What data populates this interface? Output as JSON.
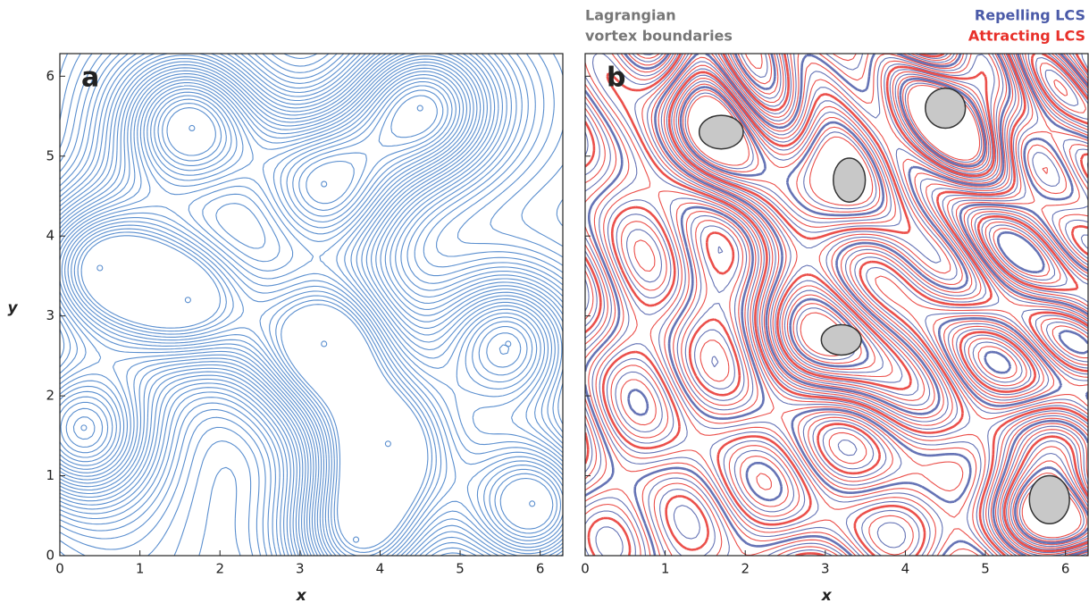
{
  "chart_data": [
    {
      "type": "contour",
      "panel_label": "a",
      "xlabel": "x",
      "ylabel": "y",
      "xlim": [
        0,
        6.283
      ],
      "ylim": [
        0,
        6.283
      ],
      "xticks": [
        0,
        1,
        2,
        3,
        4,
        5,
        6
      ],
      "yticks": [
        0,
        1,
        2,
        3,
        4,
        5,
        6
      ],
      "color": "#5b8fcf",
      "centers": {
        "x": [
          1.65,
          3.3,
          4.5,
          1.6,
          3.3,
          5.6,
          0.3,
          4.1,
          5.9,
          0.5,
          3.7
        ],
        "y": [
          5.35,
          4.65,
          5.6,
          3.2,
          2.65,
          2.65,
          1.6,
          1.4,
          0.65,
          3.6,
          0.2
        ]
      }
    },
    {
      "type": "lcs",
      "panel_label": "b",
      "xlabel": "x",
      "xlim": [
        0,
        6.283
      ],
      "ylim": [
        0,
        6.283
      ],
      "xticks": [
        0,
        1,
        2,
        3,
        4,
        5,
        6
      ],
      "yticks": [
        0,
        1,
        2,
        3,
        4,
        5,
        6
      ],
      "annotation_lines": [
        "Lagrangian",
        "vortex boundaries"
      ],
      "series": [
        {
          "name": "Repelling LCS",
          "color": "#4a5aa8"
        },
        {
          "name": "Attracting LCS",
          "color": "#e8302a"
        }
      ],
      "vortex_boundaries": {
        "x": [
          1.7,
          3.3,
          3.2,
          4.5,
          5.8
        ],
        "y": [
          5.3,
          4.7,
          2.7,
          5.6,
          0.7
        ],
        "width": [
          0.55,
          0.4,
          0.5,
          0.5,
          0.5
        ],
        "height": [
          0.42,
          0.55,
          0.38,
          0.5,
          0.6
        ],
        "color": "#c8c8c8"
      }
    }
  ]
}
